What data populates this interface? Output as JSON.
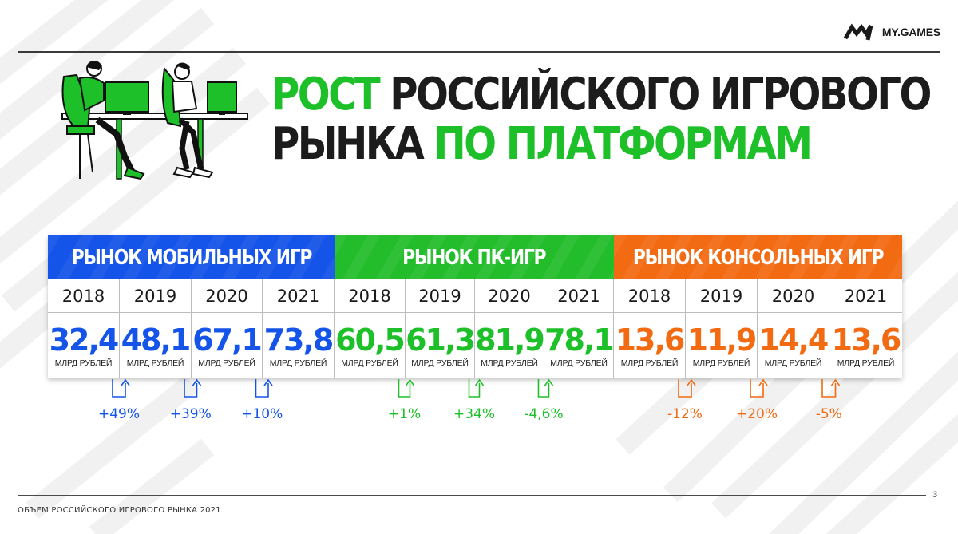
{
  "brand": {
    "logo_text": "MY.GAMES"
  },
  "title": {
    "line1_green": "РОСТ",
    "line1_dark": "РОССИЙСКОГО ИГРОВОГО",
    "line2_dark": "РЫНКА",
    "line2_green": "ПО ПЛАТФОРМАМ"
  },
  "colors": {
    "mobile": "#1554e8",
    "pc": "#1ec02a",
    "console": "#f26a12",
    "dark": "#1c1c1c"
  },
  "unit": "МЛРД РУБЛЕЙ",
  "segments": [
    {
      "title": "РЫНОК МОБИЛЬНЫХ ИГР",
      "years": [
        "2018",
        "2019",
        "2020",
        "2021"
      ],
      "values": [
        "32,4",
        "48,1",
        "67,1",
        "73,8"
      ],
      "growth": [
        "+49%",
        "+39%",
        "+10%"
      ]
    },
    {
      "title": "РЫНОК ПК-ИГР",
      "years": [
        "2018",
        "2019",
        "2020",
        "2021"
      ],
      "values": [
        "60,5",
        "61,3",
        "81,9",
        "78,1"
      ],
      "growth": [
        "+1%",
        "+34%",
        "-4,6%"
      ]
    },
    {
      "title": "РЫНОК КОНСОЛЬНЫХ ИГР",
      "years": [
        "2018",
        "2019",
        "2020",
        "2021"
      ],
      "values": [
        "13,6",
        "11,9",
        "14,4",
        "13,6"
      ],
      "growth": [
        "-12%",
        "+20%",
        "-5%"
      ]
    }
  ],
  "footer": {
    "text": "ОБЪЕМ РОССИЙСКОГО ИГРОВОГО РЫНКА 2021",
    "page": "3"
  }
}
